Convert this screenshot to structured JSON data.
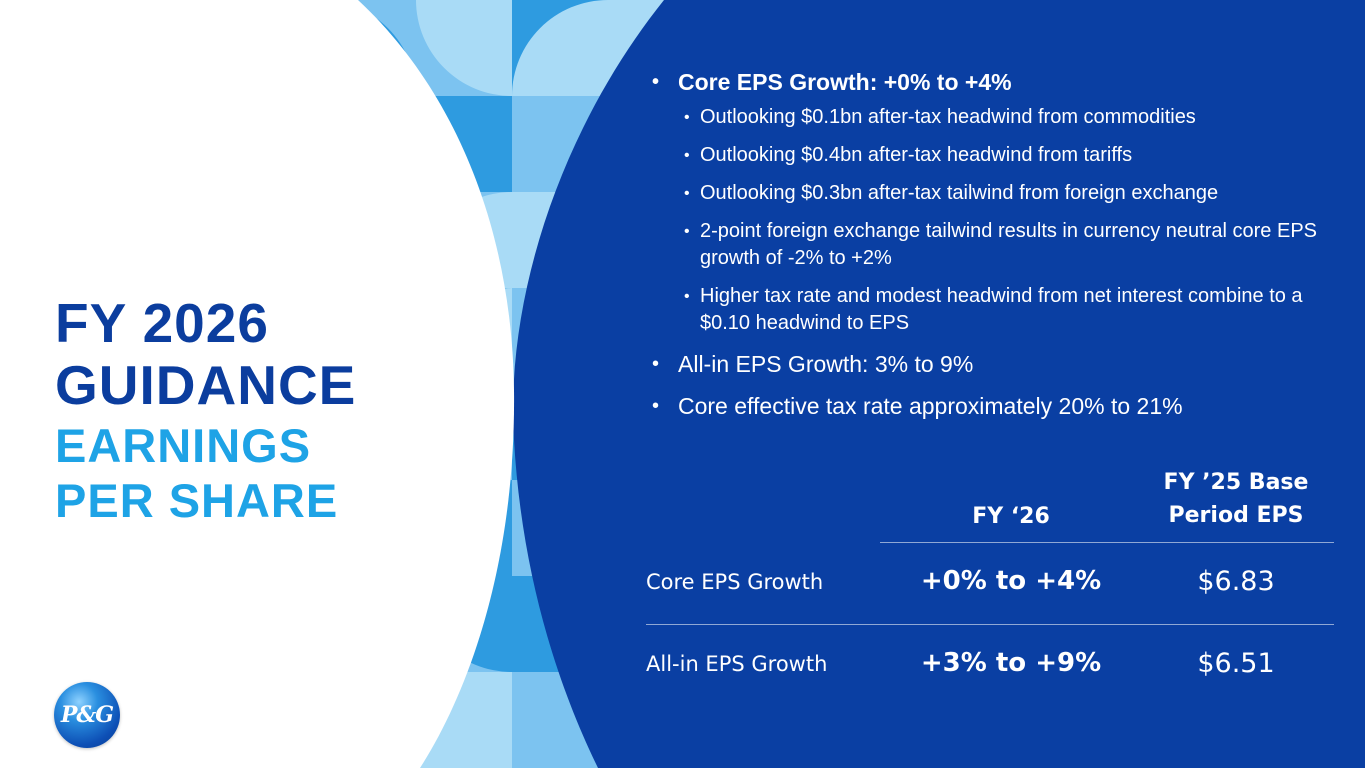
{
  "title": {
    "line1": "FY 2026",
    "line2": "GUIDANCE",
    "line3": "EARNINGS",
    "line4": "PER SHARE"
  },
  "logo": {
    "text": "P&G"
  },
  "bullets": {
    "core_eps": "Core EPS Growth: +0% to +4%",
    "sub": [
      "Outlooking $0.1bn after-tax headwind from commodities",
      "Outlooking $0.4bn after-tax headwind from tariffs",
      "Outlooking $0.3bn after-tax tailwind from foreign exchange",
      "2-point foreign exchange tailwind results in currency neutral core EPS growth of -2% to +2%",
      "Higher tax rate and modest headwind from net interest combine to a $0.10 headwind to EPS"
    ],
    "allin_eps": "All-in EPS Growth: 3% to 9%",
    "tax_rate": "Core effective tax rate approximately 20% to 21%"
  },
  "table": {
    "col1_header": "FY ‘26",
    "col2_header_line1": "FY ’25 Base",
    "col2_header_line2": "Period EPS",
    "rows": [
      {
        "label": "Core EPS Growth",
        "fy26": "+0% to +4%",
        "base": "$6.83"
      },
      {
        "label": "All-in EPS Growth",
        "fy26": "+3% to +9%",
        "base": "$6.51"
      }
    ]
  },
  "colors": {
    "navy": "#0a3fa3",
    "title_dark": "#0b3d9e",
    "title_light": "#1ea3e6"
  }
}
